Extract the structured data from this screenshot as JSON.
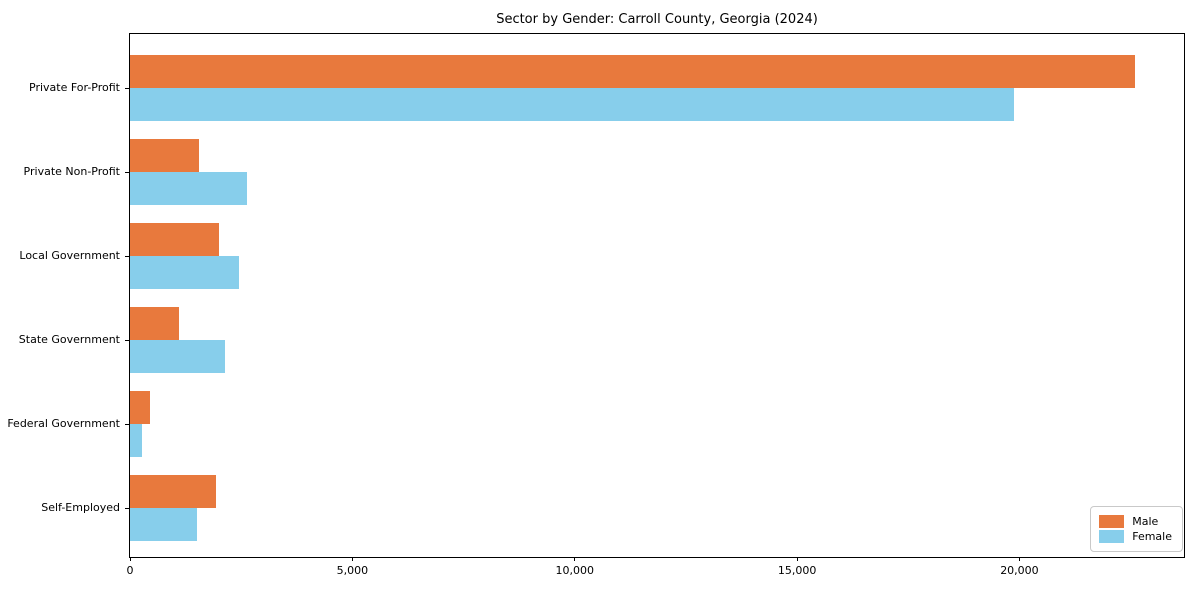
{
  "chart_data": {
    "type": "bar",
    "orientation": "horizontal",
    "title": "Sector by Gender: Carroll County, Georgia (2024)",
    "categories": [
      "Private For-Profit",
      "Private Non-Profit",
      "Local Government",
      "State Government",
      "Federal Government",
      "Self-Employed"
    ],
    "series": [
      {
        "name": "Male",
        "color": "#E8793D",
        "values": [
          22600,
          1540,
          1990,
          1090,
          440,
          1930
        ]
      },
      {
        "name": "Female",
        "color": "#87CEEB",
        "values": [
          19870,
          2620,
          2450,
          2140,
          260,
          1500
        ]
      }
    ],
    "xlabel": "",
    "ylabel": "",
    "xlim": [
      0,
      23700
    ],
    "xticks": [
      {
        "value": 0,
        "label": "0"
      },
      {
        "value": 5000,
        "label": "5,000"
      },
      {
        "value": 10000,
        "label": "10,000"
      },
      {
        "value": 15000,
        "label": "15,000"
      },
      {
        "value": 20000,
        "label": "20,000"
      }
    ],
    "grid": false,
    "legend": {
      "position": "lower-right"
    },
    "frame_color": "#000000",
    "background_color": "#ffffff"
  }
}
